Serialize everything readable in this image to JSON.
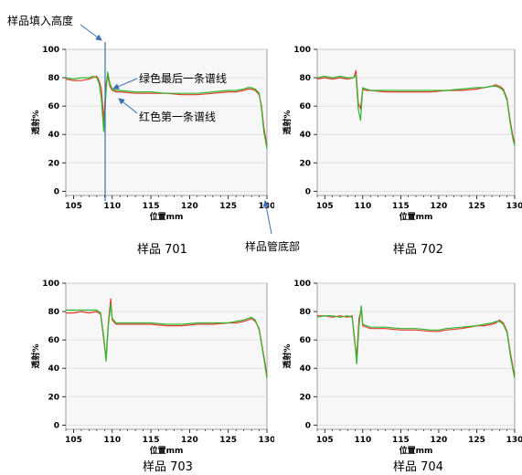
{
  "annotations": {
    "fill_height": "样品填入高度",
    "green_last": "绿色最后一条谱线",
    "red_first": "红色第一条谱线",
    "tube_bottom": "样品管底部"
  },
  "colors": {
    "red": "#e53b2c",
    "green": "#2db82d",
    "arrow": "#3b6fb0",
    "plot_bg": "#f7f7f7",
    "grid": "#dcdcdc"
  },
  "chart_data": [
    {
      "type": "line",
      "caption": "样品 701",
      "xlabel": "位置mm",
      "ylabel": "透射%",
      "xlim": [
        104,
        130
      ],
      "ylim": [
        -3,
        100
      ],
      "xticks": [
        105,
        110,
        115,
        120,
        125,
        130
      ],
      "yticks": [
        0,
        20,
        40,
        60,
        80,
        100
      ],
      "grid": true,
      "series": [
        {
          "color": "red",
          "x": [
            104,
            105,
            106,
            107,
            107.5,
            108,
            108.3,
            108.6,
            108.9,
            109.2,
            109.4,
            109.7,
            110,
            110.5,
            111,
            113,
            115,
            117,
            119,
            121,
            123,
            125,
            126,
            127,
            127.5,
            128,
            128.5,
            129,
            129.3,
            129.6,
            130
          ],
          "y": [
            79,
            78,
            78,
            79,
            80,
            81,
            78,
            72,
            50,
            75,
            82,
            74,
            71,
            70,
            70,
            69,
            69,
            69,
            68,
            68,
            69,
            70,
            70,
            71,
            72,
            72,
            71,
            68,
            60,
            45,
            32
          ]
        },
        {
          "color": "green",
          "x": [
            104,
            105,
            106,
            107,
            107.5,
            108,
            108.3,
            108.6,
            108.9,
            109.2,
            109.4,
            109.7,
            110,
            110.5,
            111,
            113,
            115,
            117,
            119,
            121,
            123,
            125,
            126,
            127,
            127.5,
            128,
            128.5,
            129,
            129.3,
            129.6,
            130
          ],
          "y": [
            80,
            79,
            80,
            80,
            81,
            80,
            76,
            65,
            42,
            70,
            84,
            76,
            72,
            71,
            71,
            70,
            70,
            69,
            69,
            69,
            70,
            71,
            71,
            72,
            73,
            73,
            72,
            69,
            58,
            42,
            30
          ]
        }
      ]
    },
    {
      "type": "line",
      "caption": "样品 702",
      "xlabel": "位置mm",
      "ylabel": "透射%",
      "xlim": [
        104,
        130
      ],
      "ylim": [
        -3,
        100
      ],
      "xticks": [
        105,
        110,
        115,
        120,
        125,
        130
      ],
      "yticks": [
        0,
        20,
        40,
        60,
        80,
        100
      ],
      "grid": true,
      "series": [
        {
          "color": "red",
          "x": [
            104,
            105,
            106,
            107,
            108,
            108.8,
            109.1,
            109.4,
            109.7,
            110,
            110.5,
            111,
            113,
            115,
            117,
            119,
            121,
            123,
            125,
            126,
            127,
            127.5,
            128,
            128.5,
            129,
            129.4,
            129.8,
            130
          ],
          "y": [
            79,
            80,
            79,
            80,
            79,
            80,
            85,
            62,
            58,
            72,
            71,
            71,
            70,
            70,
            70,
            70,
            71,
            71,
            72,
            73,
            74,
            75,
            74,
            72,
            65,
            50,
            38,
            34
          ]
        },
        {
          "color": "green",
          "x": [
            104,
            105,
            106,
            107,
            108,
            108.8,
            109.1,
            109.4,
            109.7,
            110,
            110.5,
            111,
            113,
            115,
            117,
            119,
            121,
            123,
            125,
            126,
            127,
            127.5,
            128,
            128.5,
            129,
            129.4,
            129.8,
            130
          ],
          "y": [
            80,
            81,
            80,
            81,
            80,
            80,
            82,
            58,
            50,
            73,
            72,
            71,
            71,
            71,
            71,
            71,
            71,
            72,
            73,
            73,
            74,
            74,
            73,
            71,
            64,
            48,
            36,
            32
          ]
        }
      ]
    },
    {
      "type": "line",
      "caption": "样品 703",
      "xlabel": "位置mm",
      "ylabel": "透射%",
      "xlim": [
        104,
        130
      ],
      "ylim": [
        -3,
        100
      ],
      "xticks": [
        105,
        110,
        115,
        120,
        125,
        130
      ],
      "yticks": [
        0,
        20,
        40,
        60,
        80,
        100
      ],
      "grid": true,
      "series": [
        {
          "color": "red",
          "x": [
            104,
            105,
            106,
            107,
            108,
            108.5,
            108.9,
            109.2,
            109.5,
            109.8,
            110,
            110.5,
            111,
            113,
            115,
            117,
            119,
            121,
            123,
            125,
            126,
            127,
            127.5,
            128,
            128.5,
            129,
            129.4,
            129.8,
            130
          ],
          "y": [
            79,
            79,
            80,
            79,
            80,
            78,
            60,
            47,
            72,
            89,
            74,
            71,
            71,
            71,
            71,
            70,
            70,
            71,
            71,
            72,
            72,
            73,
            74,
            75,
            73,
            68,
            55,
            42,
            35
          ]
        },
        {
          "color": "green",
          "x": [
            104,
            105,
            106,
            107,
            108,
            108.5,
            108.9,
            109.2,
            109.5,
            109.8,
            110,
            110.5,
            111,
            113,
            115,
            117,
            119,
            121,
            123,
            125,
            126,
            127,
            127.5,
            128,
            128.5,
            129,
            129.4,
            129.8,
            130
          ],
          "y": [
            81,
            81,
            81,
            81,
            81,
            79,
            62,
            45,
            70,
            85,
            75,
            72,
            72,
            72,
            72,
            71,
            71,
            72,
            72,
            72,
            73,
            74,
            75,
            76,
            74,
            67,
            54,
            40,
            33
          ]
        }
      ]
    },
    {
      "type": "line",
      "caption": "样品 704",
      "xlabel": "位置mm",
      "ylabel": "透射%",
      "xlim": [
        104,
        130
      ],
      "ylim": [
        -3,
        100
      ],
      "xticks": [
        105,
        110,
        115,
        120,
        125,
        130
      ],
      "yticks": [
        0,
        20,
        40,
        60,
        80,
        100
      ],
      "grid": true,
      "series": [
        {
          "color": "red",
          "x": [
            104,
            105,
            106,
            107,
            108,
            108.6,
            108.9,
            109.2,
            109.5,
            109.8,
            110,
            110.5,
            111,
            113,
            115,
            117,
            119,
            120,
            121,
            123,
            125,
            126,
            127,
            127.5,
            128,
            128.5,
            129,
            129.4,
            129.8,
            130
          ],
          "y": [
            77,
            77,
            76,
            77,
            76,
            77,
            60,
            48,
            75,
            82,
            70,
            69,
            68,
            68,
            67,
            67,
            66,
            66,
            67,
            68,
            70,
            70,
            71,
            72,
            74,
            72,
            66,
            52,
            40,
            35
          ]
        },
        {
          "color": "green",
          "x": [
            104,
            105,
            106,
            107,
            108,
            108.6,
            108.9,
            109.2,
            109.5,
            109.8,
            110,
            110.5,
            111,
            113,
            115,
            117,
            119,
            120,
            121,
            123,
            125,
            126,
            127,
            127.5,
            128,
            128.5,
            129,
            129.4,
            129.8,
            130
          ],
          "y": [
            76,
            77,
            77,
            76,
            77,
            76,
            62,
            43,
            70,
            84,
            71,
            70,
            69,
            69,
            68,
            68,
            67,
            67,
            68,
            69,
            70,
            71,
            72,
            73,
            73,
            71,
            65,
            50,
            38,
            33
          ]
        }
      ]
    }
  ]
}
